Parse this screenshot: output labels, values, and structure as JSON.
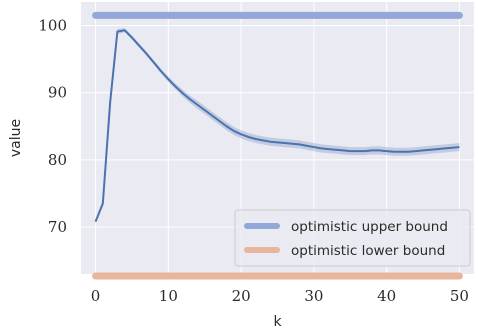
{
  "chart_data": {
    "type": "line",
    "title": "",
    "xlabel": "k",
    "ylabel": "value",
    "xlim": [
      -2,
      52
    ],
    "ylim": [
      63,
      103.5
    ],
    "xticks": [
      0,
      10,
      20,
      30,
      40,
      50
    ],
    "yticks": [
      70,
      80,
      90,
      100
    ],
    "grid": true,
    "legend_position": "lower-right",
    "series": [
      {
        "name": "optimistic upper bound",
        "style": "constant",
        "color": "#92a8d9",
        "x": [
          0,
          50
        ],
        "y": [
          101.5,
          101.5
        ]
      },
      {
        "name": "optimistic lower bound",
        "style": "constant",
        "color": "#e8b59d",
        "x": [
          0,
          50
        ],
        "y": [
          62.7,
          62.7
        ]
      },
      {
        "name": "",
        "style": "line",
        "color": "#4c72b0",
        "band_color": "#4c72b0",
        "x": [
          0,
          1,
          2,
          3,
          4,
          5,
          6,
          7,
          8,
          9,
          10,
          11,
          12,
          13,
          14,
          15,
          16,
          17,
          18,
          19,
          20,
          21,
          22,
          23,
          24,
          25,
          26,
          27,
          28,
          29,
          30,
          31,
          32,
          33,
          34,
          35,
          36,
          37,
          38,
          39,
          40,
          41,
          42,
          43,
          44,
          45,
          46,
          47,
          48,
          49,
          50
        ],
        "y": [
          70.8,
          73.5,
          88.5,
          99.1,
          99.3,
          98.2,
          97.0,
          95.8,
          94.5,
          93.2,
          92.0,
          90.9,
          89.9,
          89.0,
          88.2,
          87.4,
          86.6,
          85.8,
          85.0,
          84.3,
          83.8,
          83.4,
          83.1,
          82.9,
          82.7,
          82.6,
          82.5,
          82.4,
          82.3,
          82.1,
          81.9,
          81.7,
          81.6,
          81.5,
          81.4,
          81.3,
          81.3,
          81.3,
          81.4,
          81.4,
          81.3,
          81.2,
          81.2,
          81.2,
          81.3,
          81.4,
          81.5,
          81.6,
          81.7,
          81.8,
          81.9
        ],
        "band": [
          0.3,
          0.4,
          0.6,
          0.4,
          0.3,
          0.3,
          0.3,
          0.3,
          0.3,
          0.35,
          0.4,
          0.45,
          0.5,
          0.55,
          0.6,
          0.6,
          0.6,
          0.6,
          0.6,
          0.6,
          0.6,
          0.6,
          0.6,
          0.6,
          0.6,
          0.6,
          0.6,
          0.6,
          0.6,
          0.6,
          0.6,
          0.6,
          0.6,
          0.6,
          0.6,
          0.6,
          0.6,
          0.6,
          0.6,
          0.6,
          0.6,
          0.6,
          0.6,
          0.6,
          0.6,
          0.6,
          0.6,
          0.6,
          0.6,
          0.6,
          0.6
        ]
      }
    ],
    "legend": [
      {
        "label": "optimistic upper bound",
        "color": "#92a8d9"
      },
      {
        "label": "optimistic lower bound",
        "color": "#e8b59d"
      }
    ],
    "colors": {
      "background": "#eaeaf2",
      "grid": "#ffffff",
      "legend_bg": "#eaeaf2",
      "legend_border": "#cccccc"
    }
  }
}
